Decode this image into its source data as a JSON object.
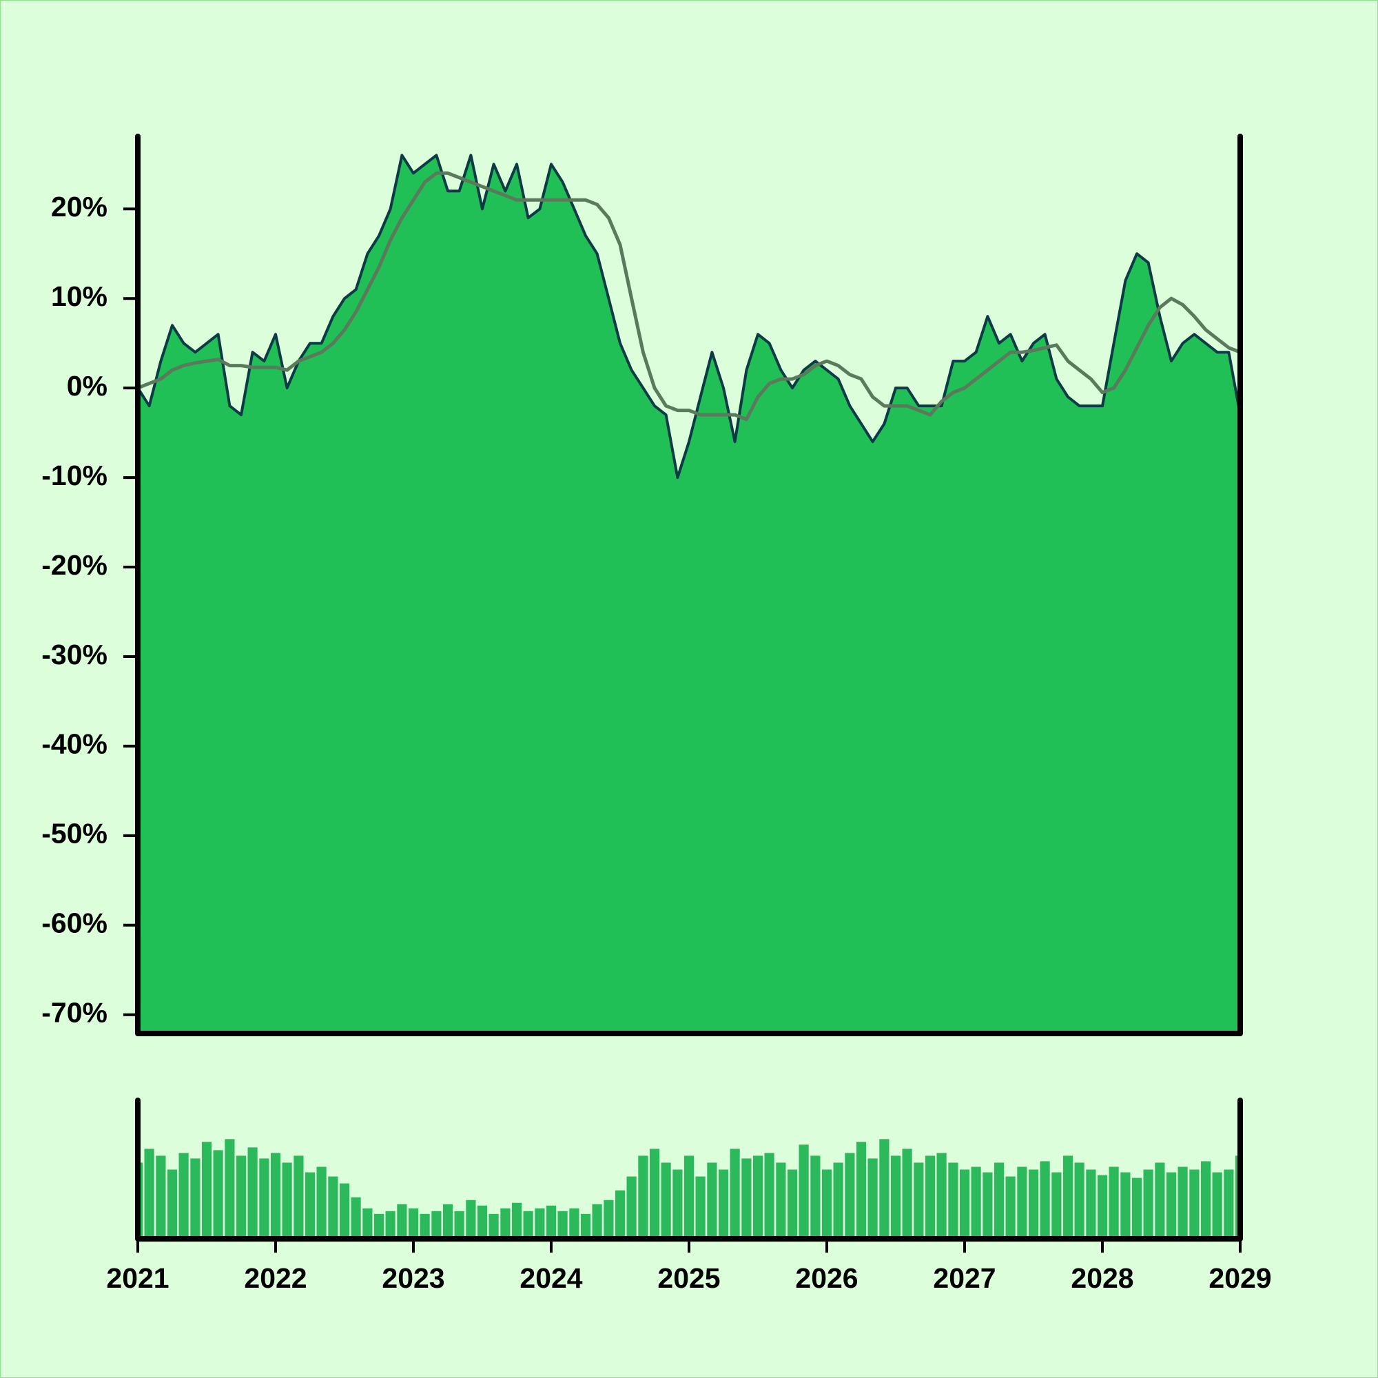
{
  "chart_data": [
    {
      "type": "area",
      "x": [
        2021,
        2021.083,
        2021.167,
        2021.25,
        2021.333,
        2021.417,
        2021.5,
        2021.583,
        2021.667,
        2021.75,
        2021.833,
        2021.917,
        2022,
        2022.083,
        2022.167,
        2022.25,
        2022.333,
        2022.417,
        2022.5,
        2022.583,
        2022.667,
        2022.75,
        2022.833,
        2022.917,
        2023,
        2023.083,
        2023.167,
        2023.25,
        2023.333,
        2023.417,
        2023.5,
        2023.583,
        2023.667,
        2023.75,
        2023.833,
        2023.917,
        2024,
        2024.083,
        2024.167,
        2024.25,
        2024.333,
        2024.417,
        2024.5,
        2024.583,
        2024.667,
        2024.75,
        2024.833,
        2024.917,
        2025,
        2025.083,
        2025.167,
        2025.25,
        2025.333,
        2025.417,
        2025.5,
        2025.583,
        2025.667,
        2025.75,
        2025.833,
        2025.917,
        2026,
        2026.083,
        2026.167,
        2026.25,
        2026.333,
        2026.417,
        2026.5,
        2026.583,
        2026.667,
        2026.75,
        2026.833,
        2026.917,
        2027,
        2027.083,
        2027.167,
        2027.25,
        2027.333,
        2027.417,
        2027.5,
        2027.583,
        2027.667,
        2027.75,
        2027.833,
        2027.917,
        2028,
        2028.083,
        2028.167,
        2028.25,
        2028.333,
        2028.417,
        2028.5,
        2028.583,
        2028.667,
        2028.75,
        2028.833,
        2028.917,
        2029
      ],
      "series": [
        {
          "style": "area",
          "color": "#0b3b45",
          "fill": "#20c057",
          "values": [
            0,
            -2,
            3,
            7,
            5,
            4,
            5,
            6,
            -2,
            -3,
            4,
            3,
            6,
            0,
            3,
            5,
            5,
            8,
            10,
            11,
            15,
            17,
            20,
            26,
            24,
            25,
            26,
            22,
            22,
            26,
            20,
            25,
            22,
            25,
            19,
            20,
            25,
            23,
            20,
            17,
            15,
            10,
            5,
            2,
            0,
            -2,
            -3,
            -10,
            -6,
            -1,
            4,
            0,
            -6,
            2,
            6,
            5,
            2,
            0,
            2,
            3,
            2,
            1,
            -2,
            -4,
            -6,
            -4,
            0,
            0,
            -2,
            -2,
            -2,
            3,
            3,
            4,
            8,
            5,
            6,
            3,
            5,
            6,
            1,
            -1,
            -2,
            -2,
            -2,
            5,
            12,
            15,
            14,
            8,
            3,
            5,
            6,
            5,
            4,
            4,
            -3
          ]
        },
        {
          "style": "line",
          "color": "#5b7a5c",
          "values": [
            0,
            0.5,
            1,
            2,
            2.5,
            2.8,
            3,
            3.2,
            2.5,
            2.5,
            2.3,
            2.3,
            2.3,
            2,
            3,
            3.5,
            4,
            5,
            6.5,
            8.5,
            11,
            13.5,
            16.5,
            19,
            21,
            23,
            24,
            24,
            23.5,
            23,
            22.5,
            22,
            21.5,
            21,
            21,
            21,
            21,
            21,
            21,
            21,
            20.5,
            19,
            16,
            10,
            4,
            0,
            -2,
            -2.5,
            -2.5,
            -3,
            -3,
            -3,
            -3,
            -3.5,
            -1,
            0.5,
            1,
            1,
            1.5,
            2.5,
            3,
            2.5,
            1.5,
            1,
            -1,
            -2,
            -2,
            -2,
            -2.5,
            -3,
            -1.5,
            -0.5,
            0,
            1,
            2,
            3,
            4,
            4,
            4.2,
            4.5,
            4.8,
            3,
            2,
            1,
            -0.5,
            0,
            2,
            4.5,
            7,
            9,
            10,
            9.3,
            8,
            6.5,
            5.5,
            4.5,
            4
          ]
        }
      ],
      "xlim": [
        2021,
        2029
      ],
      "ylim": [
        -72.1,
        28.1
      ],
      "yticks": [
        {
          "value": -70,
          "label": "-70%"
        },
        {
          "value": -60,
          "label": "-60%"
        },
        {
          "value": -50,
          "label": "-50%"
        },
        {
          "value": -40,
          "label": "-40%"
        },
        {
          "value": -30,
          "label": "-30%"
        },
        {
          "value": -20,
          "label": "-20%"
        },
        {
          "value": -10,
          "label": "-10%"
        },
        {
          "value": 0,
          "label": "0%"
        },
        {
          "value": 10,
          "label": "10%"
        },
        {
          "value": 20,
          "label": "20%"
        }
      ]
    },
    {
      "type": "bar",
      "x": [
        2021,
        2021.083,
        2021.167,
        2021.25,
        2021.333,
        2021.417,
        2021.5,
        2021.583,
        2021.667,
        2021.75,
        2021.833,
        2021.917,
        2022,
        2022.083,
        2022.167,
        2022.25,
        2022.333,
        2022.417,
        2022.5,
        2022.583,
        2022.667,
        2022.75,
        2022.833,
        2022.917,
        2023,
        2023.083,
        2023.167,
        2023.25,
        2023.333,
        2023.417,
        2023.5,
        2023.583,
        2023.667,
        2023.75,
        2023.833,
        2023.917,
        2024,
        2024.083,
        2024.167,
        2024.25,
        2024.333,
        2024.417,
        2024.5,
        2024.583,
        2024.667,
        2024.75,
        2024.833,
        2024.917,
        2025,
        2025.083,
        2025.167,
        2025.25,
        2025.333,
        2025.417,
        2025.5,
        2025.583,
        2025.667,
        2025.75,
        2025.833,
        2025.917,
        2026,
        2026.083,
        2026.167,
        2026.25,
        2026.333,
        2026.417,
        2026.5,
        2026.583,
        2026.667,
        2026.75,
        2026.833,
        2026.917,
        2027,
        2027.083,
        2027.167,
        2027.25,
        2027.333,
        2027.417,
        2027.5,
        2027.583,
        2027.667,
        2027.75,
        2027.833,
        2027.917,
        2028,
        2028.083,
        2028.167,
        2028.25,
        2028.333,
        2028.417,
        2028.5,
        2028.583,
        2028.667,
        2028.75,
        2028.833,
        2028.917,
        2029
      ],
      "values": [
        55,
        65,
        60,
        50,
        62,
        58,
        70,
        64,
        72,
        60,
        66,
        58,
        62,
        55,
        60,
        48,
        52,
        45,
        40,
        30,
        22,
        18,
        20,
        25,
        22,
        18,
        20,
        25,
        20,
        28,
        24,
        18,
        22,
        26,
        20,
        22,
        24,
        20,
        22,
        18,
        25,
        28,
        35,
        45,
        60,
        65,
        55,
        50,
        60,
        45,
        55,
        50,
        65,
        58,
        60,
        62,
        55,
        50,
        68,
        60,
        50,
        55,
        62,
        70,
        58,
        72,
        60,
        65,
        55,
        60,
        62,
        55,
        50,
        52,
        48,
        55,
        45,
        52,
        50,
        56,
        48,
        60,
        55,
        50,
        46,
        52,
        48,
        44,
        50,
        55,
        48,
        52,
        50,
        56,
        48,
        50,
        60
      ],
      "color": "#2bb95b",
      "xlim": [
        2021,
        2029
      ],
      "ylim": [
        0,
        100
      ],
      "xticks": [
        2021,
        2022,
        2023,
        2024,
        2025,
        2026,
        2027,
        2028,
        2029
      ]
    }
  ]
}
